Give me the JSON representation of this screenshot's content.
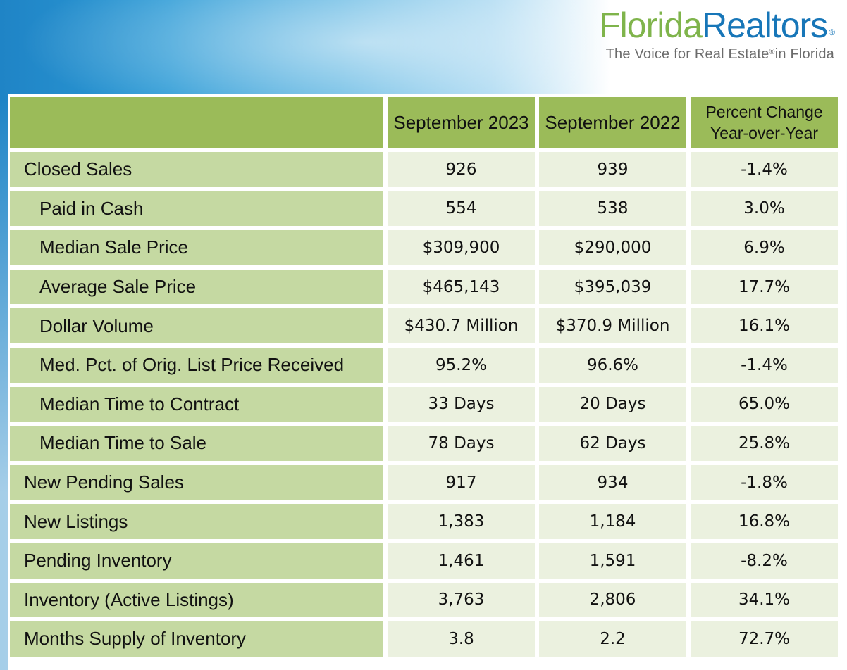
{
  "logo": {
    "word_part1": "Florida",
    "word_part2": "Realtors",
    "word_mark": "®",
    "tagline_part1": "The Voice for Real Estate",
    "tagline_mark": "®",
    "tagline_part2": "in Florida"
  },
  "table": {
    "headers": [
      "",
      "September 2023",
      "September 2022",
      "Percent Change",
      "Year-over-Year"
    ],
    "rows": [
      {
        "label": "Closed Sales",
        "sub": false,
        "a": "926",
        "b": "939",
        "c": "-1.4%"
      },
      {
        "label": "Paid in Cash",
        "sub": true,
        "a": "554",
        "b": "538",
        "c": "3.0%"
      },
      {
        "label": "Median Sale Price",
        "sub": true,
        "a": "$309,900",
        "b": "$290,000",
        "c": "6.9%"
      },
      {
        "label": "Average Sale Price",
        "sub": true,
        "a": "$465,143",
        "b": "$395,039",
        "c": "17.7%"
      },
      {
        "label": "Dollar Volume",
        "sub": true,
        "a": "$430.7 Million",
        "b": "$370.9 Million",
        "c": "16.1%"
      },
      {
        "label": "Med. Pct. of Orig. List Price Received",
        "sub": true,
        "a": "95.2%",
        "b": "96.6%",
        "c": "-1.4%"
      },
      {
        "label": "Median Time to Contract",
        "sub": true,
        "a": "33 Days",
        "b": "20 Days",
        "c": "65.0%"
      },
      {
        "label": "Median Time to Sale",
        "sub": true,
        "a": "78 Days",
        "b": "62 Days",
        "c": "25.8%"
      },
      {
        "label": "New Pending Sales",
        "sub": false,
        "a": "917",
        "b": "934",
        "c": "-1.8%"
      },
      {
        "label": "New Listings",
        "sub": false,
        "a": "1,383",
        "b": "1,184",
        "c": "16.8%"
      },
      {
        "label": "Pending Inventory",
        "sub": false,
        "a": "1,461",
        "b": "1,591",
        "c": "-8.2%"
      },
      {
        "label": "Inventory (Active Listings)",
        "sub": false,
        "a": "3,763",
        "b": "2,806",
        "c": "34.1%"
      },
      {
        "label": "Months Supply of Inventory",
        "sub": false,
        "a": "3.8",
        "b": "2.2",
        "c": "72.7%"
      }
    ]
  },
  "colors": {
    "header_green": "#9bbb59",
    "label_green": "#c5d9a2",
    "value_bg": "#ebf1df",
    "logo_green": "#7fb44b",
    "logo_blue": "#1776b8",
    "banner_blue": "#2d9bd6"
  }
}
